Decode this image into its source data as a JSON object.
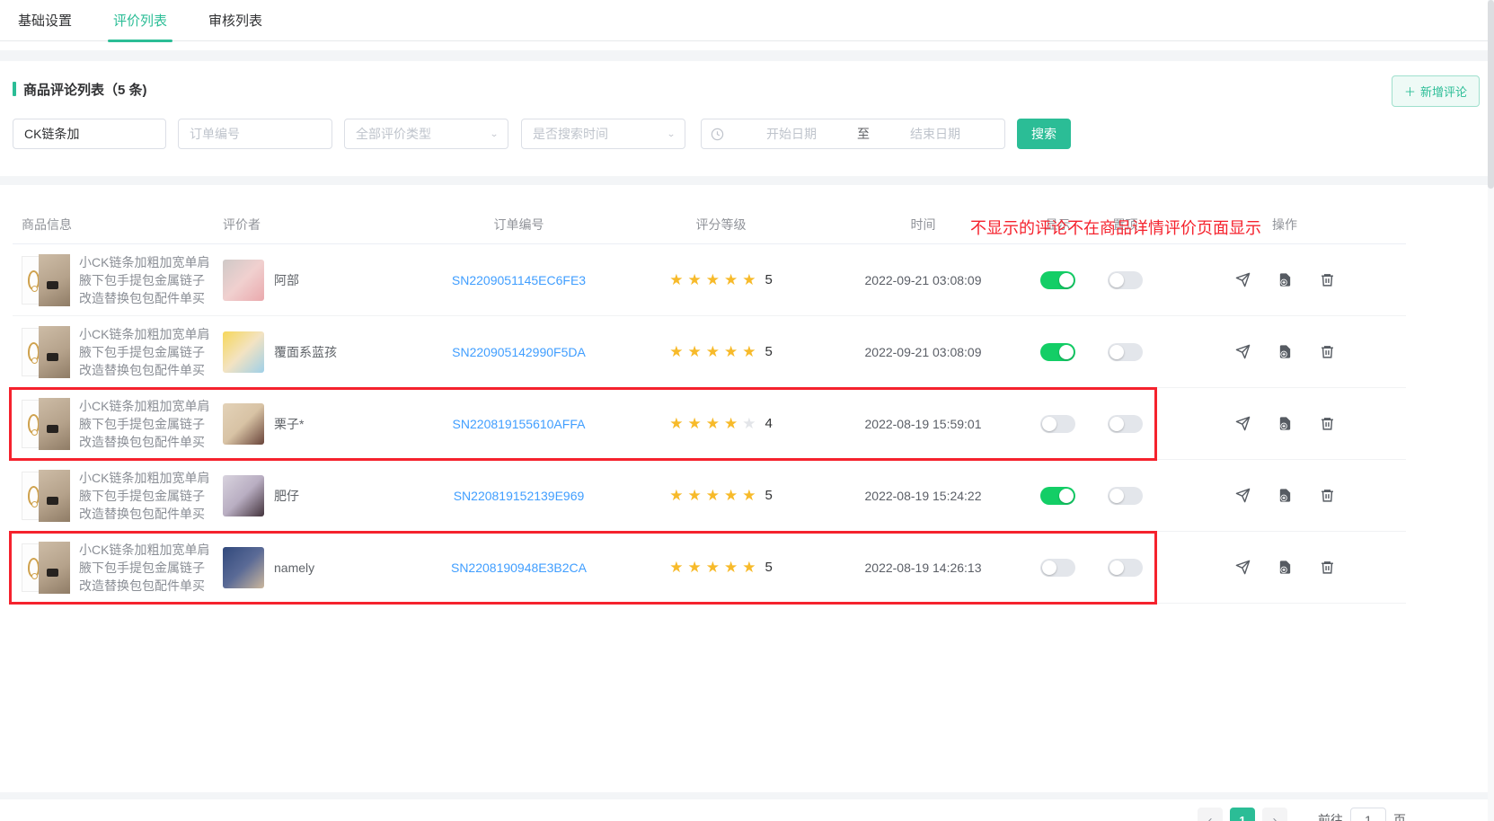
{
  "colors": {
    "accent": "#2bbd96",
    "toggle_on": "#13ce66",
    "link": "#409eff",
    "star": "#f7ba2a",
    "star_empty": "#e3e5e9",
    "annotation_red": "#f5222d"
  },
  "tabs": [
    {
      "label": "基础设置",
      "active": false
    },
    {
      "label": "评价列表",
      "active": true
    },
    {
      "label": "审核列表",
      "active": false
    }
  ],
  "panel": {
    "title": "商品评论列表（5 条)",
    "add_button_label": "新增评论",
    "add_button_plus": "＋"
  },
  "filters": {
    "keyword_value": "CK链条加",
    "order_placeholder": "订单编号",
    "type_placeholder": "全部评价类型",
    "time_placeholder": "是否搜索时间",
    "date_start_placeholder": "开始日期",
    "date_separator": "至",
    "date_end_placeholder": "结束日期",
    "search_label": "搜索"
  },
  "annotation": "不显示的评论不在商品详情评价页面显示",
  "table": {
    "headers": [
      "商品信息",
      "评价者",
      "订单编号",
      "评分等级",
      "时间",
      "显示",
      "置顶",
      "操作"
    ],
    "rows": [
      {
        "product": "小CK链条加粗加宽单肩腋下包手提包金属链子改造替换包包配件单买",
        "reviewer": "阿部",
        "order": "SN2209051145EC6FE3",
        "rating": 5,
        "rating_label": "5",
        "time": "2022-09-21 03:08:09",
        "show_on": true,
        "top_on": false,
        "boxed": false,
        "avatar_colors": [
          "#cfc9c7",
          "#f0d0cf",
          "#eaa9ad"
        ]
      },
      {
        "product": "小CK链条加粗加宽单肩腋下包手提包金属链子改造替换包包配件单买",
        "reviewer": "覆面系蓝孩",
        "order": "SN220905142990F5DA",
        "rating": 5,
        "rating_label": "5",
        "time": "2022-09-21 03:08:09",
        "show_on": true,
        "top_on": false,
        "boxed": false,
        "avatar_colors": [
          "#f6d75a",
          "#f3e3c2",
          "#9fd0e8"
        ]
      },
      {
        "product": "小CK链条加粗加宽单肩腋下包手提包金属链子改造替换包包配件单买",
        "reviewer": "栗子*",
        "order": "SN220819155610AFFA",
        "rating": 4,
        "rating_label": "4",
        "time": "2022-08-19 15:59:01",
        "show_on": false,
        "top_on": false,
        "boxed": true,
        "avatar_colors": [
          "#e3d2b8",
          "#d8c3a5",
          "#69443a"
        ]
      },
      {
        "product": "小CK链条加粗加宽单肩腋下包手提包金属链子改造替换包包配件单买",
        "reviewer": "肥仔",
        "order": "SN220819152139E969",
        "rating": 5,
        "rating_label": "5",
        "time": "2022-08-19 15:24:22",
        "show_on": true,
        "top_on": false,
        "boxed": false,
        "avatar_colors": [
          "#d8d3de",
          "#b9aec2",
          "#43333c"
        ]
      },
      {
        "product": "小CK链条加粗加宽单肩腋下包手提包金属链子改造替换包包配件单买",
        "reviewer": "namely",
        "order": "SN2208190948E3B2CA",
        "rating": 5,
        "rating_label": "5",
        "time": "2022-08-19 14:26:13",
        "show_on": false,
        "top_on": false,
        "boxed": true,
        "avatar_colors": [
          "#31497c",
          "#5a6a96",
          "#cbb79d"
        ]
      }
    ]
  },
  "pagination": {
    "prev": "‹",
    "current": "1",
    "next": "›",
    "goto_label": "前往",
    "goto_value": "1",
    "unit_label": "页"
  }
}
